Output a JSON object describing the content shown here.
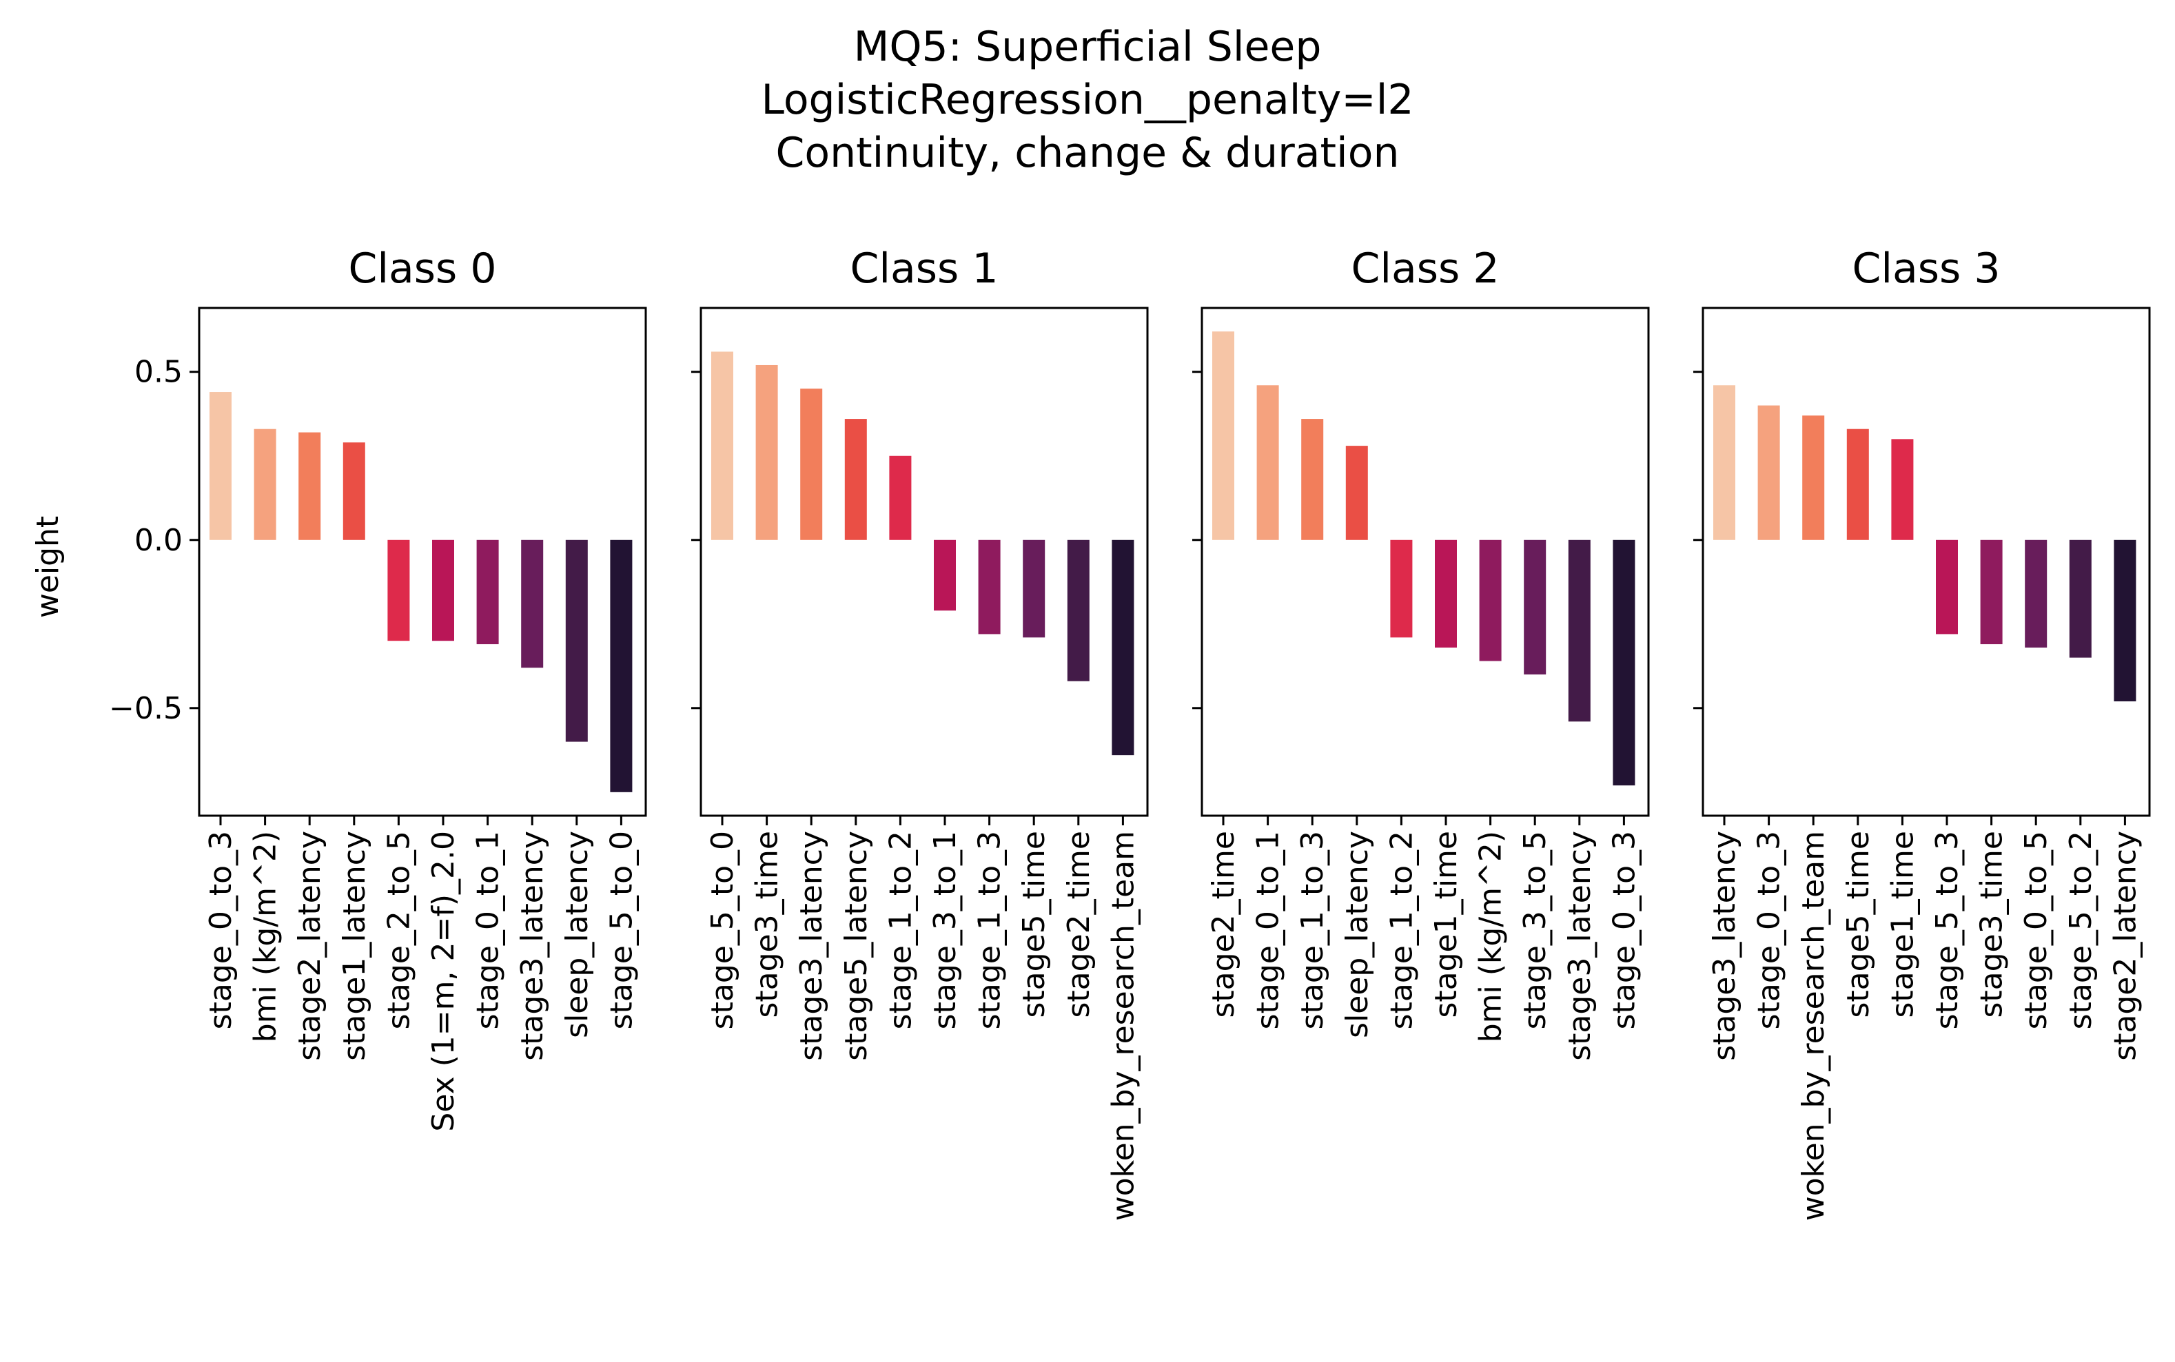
{
  "figure": {
    "title_lines": [
      "MQ5: Superficial Sleep",
      "LogisticRegression__penalty=l2",
      "Continuity, change & duration"
    ]
  },
  "chart_data": {
    "type": "bar",
    "ylabel": "weight",
    "ylim": [
      -0.82,
      0.69
    ],
    "yticks": [
      {
        "value": 0.5,
        "label": "0.5"
      },
      {
        "value": 0.0,
        "label": "0.0"
      },
      {
        "value": -0.5,
        "label": "−0.5"
      }
    ],
    "sharey": true,
    "palette": [
      "#f6c5a6",
      "#f5a27e",
      "#f27e5b",
      "#ea4f45",
      "#de2a4b",
      "#b91657",
      "#8f1b5e",
      "#681d5b",
      "#431b48",
      "#221333"
    ],
    "panels": [
      {
        "title": "Class 0",
        "categories": [
          "stage_0_to_3",
          "bmi (kg/m^2)",
          "stage2_latency",
          "stage1_latency",
          "stage_2_to_5",
          "Sex (1=m, 2=f)_2.0",
          "stage_0_to_1",
          "stage3_latency",
          "sleep_latency",
          "stage_5_to_0"
        ],
        "values": [
          0.44,
          0.33,
          0.32,
          0.29,
          -0.3,
          -0.3,
          -0.31,
          -0.38,
          -0.6,
          -0.75
        ]
      },
      {
        "title": "Class 1",
        "categories": [
          "stage_5_to_0",
          "stage3_time",
          "stage3_latency",
          "stage5_latency",
          "stage_1_to_2",
          "stage_3_to_1",
          "stage_1_to_3",
          "stage5_time",
          "stage2_time",
          "woken_by_research_team"
        ],
        "values": [
          0.56,
          0.52,
          0.45,
          0.36,
          0.25,
          -0.21,
          -0.28,
          -0.29,
          -0.42,
          -0.64
        ]
      },
      {
        "title": "Class 2",
        "categories": [
          "stage2_time",
          "stage_0_to_1",
          "stage_1_to_3",
          "sleep_latency",
          "stage_1_to_2",
          "stage1_time",
          "bmi (kg/m^2)",
          "stage_3_to_5",
          "stage3_latency",
          "stage_0_to_3"
        ],
        "values": [
          0.62,
          0.46,
          0.36,
          0.28,
          -0.29,
          -0.32,
          -0.36,
          -0.4,
          -0.54,
          -0.73
        ]
      },
      {
        "title": "Class 3",
        "categories": [
          "stage3_latency",
          "stage_0_to_3",
          "woken_by_research_team",
          "stage5_time",
          "stage1_time",
          "stage_5_to_3",
          "stage3_time",
          "stage_0_to_5",
          "stage_5_to_2",
          "stage2_latency"
        ],
        "values": [
          0.46,
          0.4,
          0.37,
          0.33,
          0.3,
          -0.28,
          -0.31,
          -0.32,
          -0.35,
          -0.48
        ]
      }
    ]
  }
}
